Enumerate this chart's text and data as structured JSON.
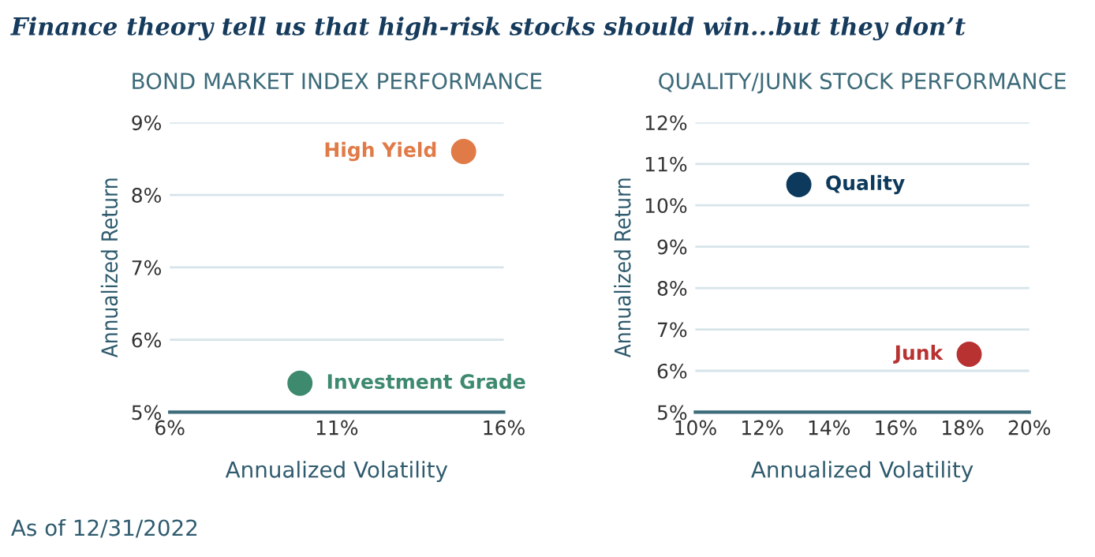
{
  "chart_data": [
    {
      "type": "scatter",
      "title": "Finance theory tell us that high-risk stocks should win...but they don’t",
      "subtitle": "BOND MARKET INDEX PERFORMANCE",
      "xlabel": "Annualized Volatility",
      "ylabel": "Annualized Return",
      "series": [
        {
          "name": "High Yield",
          "color": "#e07b47",
          "x": [
            14.8
          ],
          "values": [
            8.6
          ]
        },
        {
          "name": "Investment Grade",
          "color": "#3e8a6e",
          "x": [
            9.9
          ],
          "values": [
            5.4
          ]
        }
      ],
      "xlim": [
        6,
        16
      ],
      "xticks": [
        {
          "value": 6,
          "label": "6%"
        },
        {
          "value": 11,
          "label": "11%"
        },
        {
          "value": 16,
          "label": "16%"
        }
      ],
      "ylim": [
        5,
        9
      ],
      "yticks": [
        {
          "value": 5,
          "label": "5%"
        },
        {
          "value": 6,
          "label": "6%"
        },
        {
          "value": 7,
          "label": "7%"
        },
        {
          "value": 8,
          "label": "8%"
        },
        {
          "value": 9,
          "label": "9%"
        }
      ],
      "grid": "y",
      "marker": "circle",
      "legend": false,
      "annotations": [
        "As of 12/31/2022"
      ]
    },
    {
      "type": "scatter",
      "subtitle": "QUALITY/JUNK STOCK PERFORMANCE",
      "xlabel": "Annualized Volatility",
      "ylabel": "Annualized Return",
      "series": [
        {
          "name": "Quality",
          "color": "#0d3a5c",
          "x": [
            13.1
          ],
          "values": [
            10.5
          ]
        },
        {
          "name": "Junk",
          "color": "#b83232",
          "x": [
            18.2
          ],
          "values": [
            6.4
          ]
        }
      ],
      "xlim": [
        10,
        20
      ],
      "xticks": [
        {
          "value": 10,
          "label": "10%"
        },
        {
          "value": 12,
          "label": "12%"
        },
        {
          "value": 14,
          "label": "14%"
        },
        {
          "value": 16,
          "label": "16%"
        },
        {
          "value": 18,
          "label": "18%"
        },
        {
          "value": 20,
          "label": "20%"
        }
      ],
      "ylim": [
        5,
        12
      ],
      "yticks": [
        {
          "value": 5,
          "label": "5%"
        },
        {
          "value": 6,
          "label": "6%"
        },
        {
          "value": 7,
          "label": "7%"
        },
        {
          "value": 8,
          "label": "8%"
        },
        {
          "value": 9,
          "label": "9%"
        },
        {
          "value": 10,
          "label": "10%"
        },
        {
          "value": 11,
          "label": "11%"
        },
        {
          "value": 12,
          "label": "12%"
        }
      ],
      "grid": "y",
      "marker": "circle",
      "legend": false
    }
  ]
}
